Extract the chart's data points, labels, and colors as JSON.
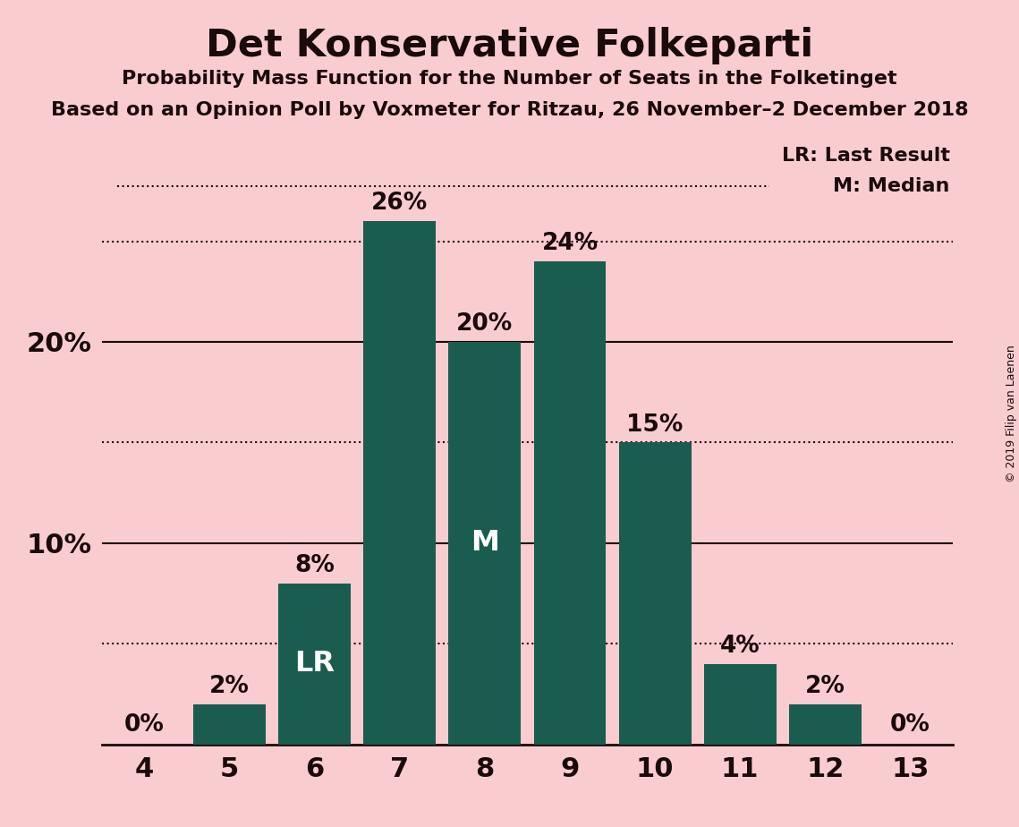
{
  "title": "Det Konservative Folkeparti",
  "subtitle1": "Probability Mass Function for the Number of Seats in the Folketinget",
  "subtitle2": "Based on an Opinion Poll by Voxmeter for Ritzau, 26 November–2 December 2018",
  "copyright": "© 2019 Filip van Laenen",
  "categories": [
    4,
    5,
    6,
    7,
    8,
    9,
    10,
    11,
    12,
    13
  ],
  "values": [
    0,
    2,
    8,
    26,
    20,
    24,
    15,
    4,
    2,
    0
  ],
  "bar_color": "#1a5c50",
  "background_color": "#f9cdd0",
  "text_color": "#1a0a0a",
  "bar_labels": [
    "0%",
    "2%",
    "8%",
    "26%",
    "20%",
    "24%",
    "15%",
    "4%",
    "2%",
    "0%"
  ],
  "ylim": [
    0,
    30
  ],
  "solid_lines": [
    10,
    20
  ],
  "dotted_lines": [
    5,
    15,
    25
  ],
  "last_result_seat": 6,
  "median_seat": 8,
  "dotted_line_color": "#1a0a0a"
}
